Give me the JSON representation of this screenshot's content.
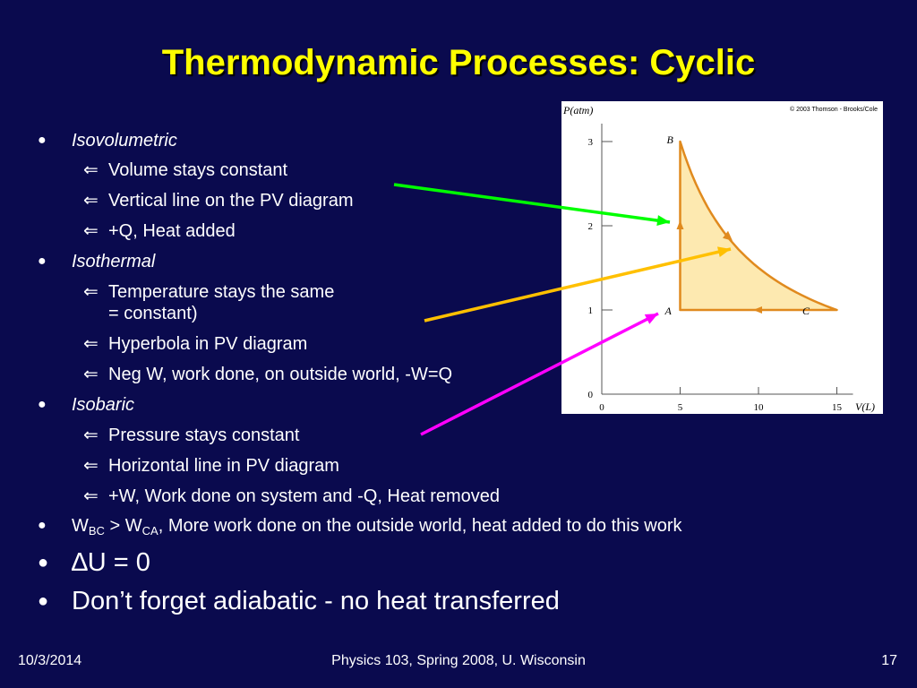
{
  "title": "Thermodynamic Processes: Cyclic",
  "bullets": {
    "isovolumetric": {
      "heading": "Isovolumetric",
      "items": [
        "Volume stays constant",
        "Vertical line on the PV diagram",
        "+Q, Heat added"
      ]
    },
    "isothermal": {
      "heading": "Isothermal",
      "items": [
        "Temperature stays the same",
        "= constant)",
        "Hyperbola in PV diagram",
        "Neg W, work done, on outside world, -W=Q"
      ]
    },
    "isobaric": {
      "heading": "Isobaric",
      "items": [
        "Pressure stays constant",
        "Horizontal line in PV diagram",
        "+W, Work done on system and -Q, Heat removed"
      ]
    },
    "work_comparison": {
      "w1": "W",
      "w1_sub": "BC",
      "gt": " > ",
      "w2": "W",
      "w2_sub": "CA",
      "rest": ", More work done on the outside world, heat added to do this work"
    },
    "delta_u": "∆U = 0",
    "adiabatic": "Don’t forget adiabatic - no heat transferred"
  },
  "icons": {
    "bullet": "filled-circle",
    "sub_bullet": "left-arrow"
  },
  "diagram": {
    "copyright": "© 2003 Thomson - Brooks/Cole",
    "y_axis_label": "P(atm)",
    "x_axis_label": "V(L)",
    "y_ticks": [
      "0",
      "1",
      "2",
      "3"
    ],
    "x_ticks": [
      "0",
      "5",
      "10",
      "15"
    ],
    "point_labels": {
      "A": "A",
      "B": "B",
      "C": "C"
    },
    "points": {
      "A": [
        5,
        1
      ],
      "B": [
        5,
        3
      ],
      "C": [
        15,
        1
      ]
    },
    "ylim": [
      0,
      3
    ],
    "xlim": [
      0,
      15
    ],
    "fill_color": "#fde9b0",
    "line_color": "#e08a1e"
  },
  "pointer_colors": {
    "isovolumetric": "#00ff00",
    "isothermal": "#ffc000",
    "isobaric": "#ff00ff"
  },
  "colors": {
    "background": "#0a0a4e",
    "title": "#ffff00",
    "text": "#ffffff"
  },
  "footer": {
    "date": "10/3/2014",
    "center": "Physics 103, Spring 2008, U. Wisconsin",
    "page": "17"
  }
}
